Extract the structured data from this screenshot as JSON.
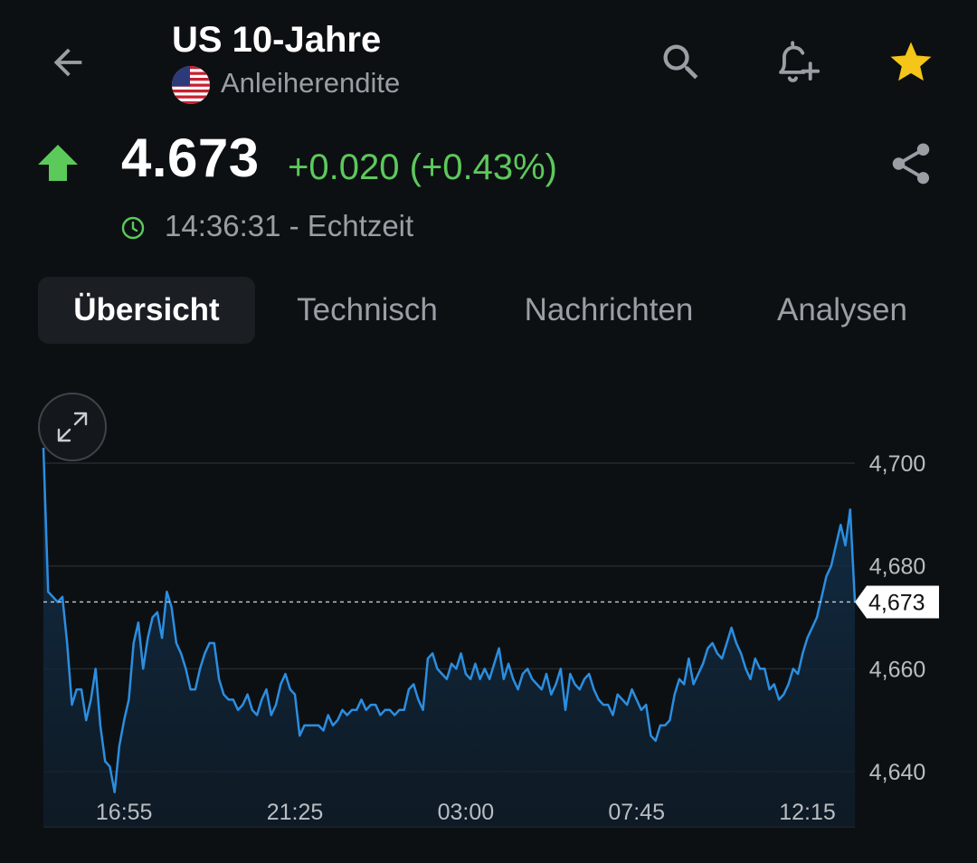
{
  "header": {
    "title": "US 10-Jahre",
    "subtitle": "Anleiherendite"
  },
  "quote": {
    "price": "4.673",
    "change": "+0.020 (+0.43%)",
    "direction": "up",
    "time": "14:36:31 - Echtzeit",
    "up_color": "#5cc95b"
  },
  "icons": {
    "back": "arrow-left-icon",
    "search": "search-icon",
    "alert": "bell-plus-icon",
    "favorite": "star-icon",
    "share": "share-icon",
    "clock": "clock-icon",
    "expand": "expand-icon",
    "flag": "us-flag-icon"
  },
  "tabs": [
    {
      "label": "Übersicht",
      "active": true
    },
    {
      "label": "Technisch",
      "active": false
    },
    {
      "label": "Nachrichten",
      "active": false
    },
    {
      "label": "Analysen",
      "active": false
    }
  ],
  "chart_data": {
    "type": "area",
    "line_color": "#2b8ee0",
    "current_value": 4.673,
    "current_label": "4,673",
    "ylim": [
      4.634,
      4.705
    ],
    "y_ticks": [
      {
        "value": 4.7,
        "label": "4,700"
      },
      {
        "value": 4.68,
        "label": "4,680"
      },
      {
        "value": 4.66,
        "label": "4,660"
      },
      {
        "value": 4.64,
        "label": "4,640"
      }
    ],
    "x_ticks": [
      {
        "index": 17,
        "label": "16:55"
      },
      {
        "index": 53,
        "label": "21:25"
      },
      {
        "index": 89,
        "label": "03:00"
      },
      {
        "index": 125,
        "label": "07:45"
      },
      {
        "index": 161,
        "label": "12:15"
      }
    ],
    "values": [
      4.703,
      4.675,
      4.674,
      4.673,
      4.674,
      4.665,
      4.653,
      4.656,
      4.656,
      4.65,
      4.654,
      4.66,
      4.649,
      4.642,
      4.641,
      4.636,
      4.645,
      4.65,
      4.654,
      4.665,
      4.669,
      4.66,
      4.666,
      4.67,
      4.671,
      4.666,
      4.675,
      4.672,
      4.665,
      4.663,
      4.66,
      4.656,
      4.656,
      4.66,
      4.663,
      4.665,
      4.665,
      4.658,
      4.655,
      4.654,
      4.654,
      4.652,
      4.653,
      4.655,
      4.652,
      4.651,
      4.654,
      4.656,
      4.651,
      4.653,
      4.657,
      4.659,
      4.656,
      4.655,
      4.647,
      4.649,
      4.649,
      4.649,
      4.649,
      4.648,
      4.651,
      4.649,
      4.65,
      4.652,
      4.651,
      4.652,
      4.652,
      4.654,
      4.652,
      4.653,
      4.653,
      4.651,
      4.652,
      4.652,
      4.651,
      4.652,
      4.652,
      4.656,
      4.657,
      4.654,
      4.652,
      4.662,
      4.663,
      4.66,
      4.659,
      4.658,
      4.661,
      4.66,
      4.663,
      4.659,
      4.658,
      4.661,
      4.658,
      4.66,
      4.658,
      4.661,
      4.664,
      4.658,
      4.661,
      4.658,
      4.656,
      4.659,
      4.66,
      4.658,
      4.657,
      4.656,
      4.659,
      4.655,
      4.657,
      4.66,
      4.652,
      4.659,
      4.657,
      4.656,
      4.658,
      4.659,
      4.656,
      4.654,
      4.653,
      4.653,
      4.651,
      4.655,
      4.654,
      4.653,
      4.656,
      4.654,
      4.652,
      4.653,
      4.647,
      4.646,
      4.649,
      4.649,
      4.65,
      4.655,
      4.658,
      4.657,
      4.662,
      4.657,
      4.659,
      4.661,
      4.664,
      4.665,
      4.663,
      4.662,
      4.665,
      4.668,
      4.665,
      4.663,
      4.66,
      4.658,
      4.662,
      4.66,
      4.66,
      4.656,
      4.657,
      4.654,
      4.655,
      4.657,
      4.66,
      4.659,
      4.663,
      4.666,
      4.668,
      4.67,
      4.674,
      4.678,
      4.68,
      4.684,
      4.688,
      4.684,
      4.691,
      4.673
    ]
  }
}
